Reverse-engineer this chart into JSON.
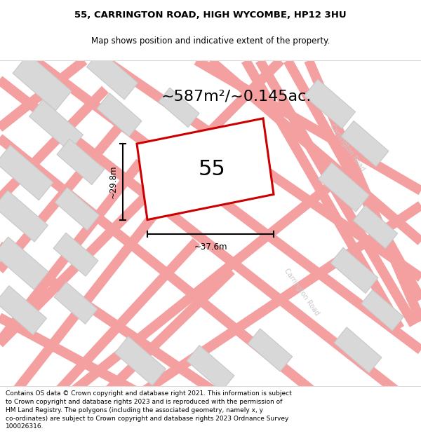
{
  "title": "55, CARRINGTON ROAD, HIGH WYCOMBE, HP12 3HU",
  "subtitle": "Map shows position and indicative extent of the property.",
  "footer": "Contains OS data © Crown copyright and database right 2021. This information is subject to Crown copyright and database rights 2023 and is reproduced with the permission of HM Land Registry. The polygons (including the associated geometry, namely x, y co-ordinates) are subject to Crown copyright and database rights 2023 Ordnance Survey 100026316.",
  "area_label": "~587m²/~0.145ac.",
  "plot_number": "55",
  "width_label": "~37.6m",
  "height_label": "~29.8m",
  "plot_color": "#cc0000",
  "building_color": "#d8d8d8",
  "building_edge": "#c8c8c8",
  "road_color": "#f5a0a0",
  "road_label_color": "#c8c8c8",
  "title_fontsize": 9.5,
  "subtitle_fontsize": 8.5,
  "area_fontsize": 16,
  "plot_number_fontsize": 22,
  "footer_fontsize": 6.5,
  "map_bg": "#f8f6f6"
}
